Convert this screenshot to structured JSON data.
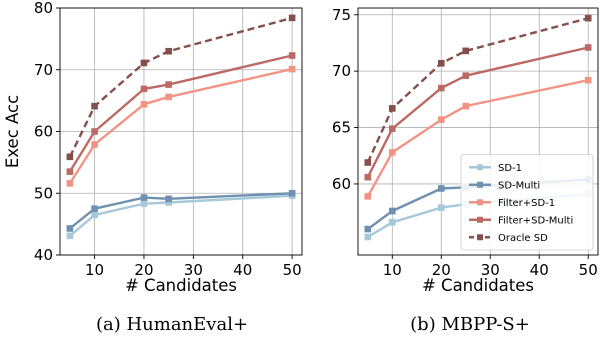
{
  "chart_data": [
    {
      "type": "line",
      "caption": "(a) HumanEval+",
      "xlabel": "# Candidates",
      "ylabel": "Exec Acc",
      "xlim": [
        3,
        52
      ],
      "ylim": [
        40,
        80
      ],
      "xticks": [
        10,
        20,
        30,
        40,
        50
      ],
      "yticks": [
        40,
        50,
        60,
        70,
        80
      ],
      "x": [
        5,
        10,
        20,
        25,
        50
      ],
      "grid": true,
      "legend": "",
      "series": [
        {
          "name": "SD-1",
          "values": [
            43.1,
            46.5,
            48.3,
            48.5,
            49.6
          ]
        },
        {
          "name": "SD-Multi",
          "values": [
            44.3,
            47.5,
            49.3,
            49.1,
            50.0
          ]
        },
        {
          "name": "Filter+SD-1",
          "values": [
            51.6,
            57.9,
            64.4,
            65.6,
            70.1
          ]
        },
        {
          "name": "Filter+SD-Multi",
          "values": [
            53.5,
            60.0,
            66.9,
            67.6,
            72.3
          ]
        },
        {
          "name": "Oracle SD",
          "values": [
            55.9,
            64.1,
            71.1,
            73.0,
            78.4
          ]
        }
      ]
    },
    {
      "type": "line",
      "caption": "(b) MBPP-S+",
      "xlabel": "# Candidates",
      "ylabel": "",
      "xlim": [
        3,
        52
      ],
      "ylim": [
        53.7,
        75.6
      ],
      "xticks": [
        10,
        20,
        30,
        40,
        50
      ],
      "yticks": [
        60,
        65,
        70,
        75
      ],
      "x": [
        5,
        10,
        20,
        25,
        50
      ],
      "grid": true,
      "legend": "lower-right",
      "series": [
        {
          "name": "SD-1",
          "values": [
            55.3,
            56.6,
            57.9,
            58.2,
            59.1
          ]
        },
        {
          "name": "SD-Multi",
          "values": [
            56.0,
            57.6,
            59.6,
            59.7,
            60.4
          ]
        },
        {
          "name": "Filter+SD-1",
          "values": [
            58.9,
            62.8,
            65.7,
            66.9,
            69.2
          ]
        },
        {
          "name": "Filter+SD-Multi",
          "values": [
            60.6,
            64.9,
            68.5,
            69.6,
            72.1
          ]
        },
        {
          "name": "Oracle SD",
          "values": [
            61.9,
            66.7,
            70.7,
            71.8,
            74.7
          ]
        }
      ]
    }
  ],
  "series_styles": [
    {
      "color": "#a6c8d8",
      "dash": ""
    },
    {
      "color": "#7090b0",
      "dash": ""
    },
    {
      "color": "#f29484",
      "dash": ""
    },
    {
      "color": "#bc6a64",
      "dash": ""
    },
    {
      "color": "#85504b",
      "dash": "7,4"
    }
  ]
}
